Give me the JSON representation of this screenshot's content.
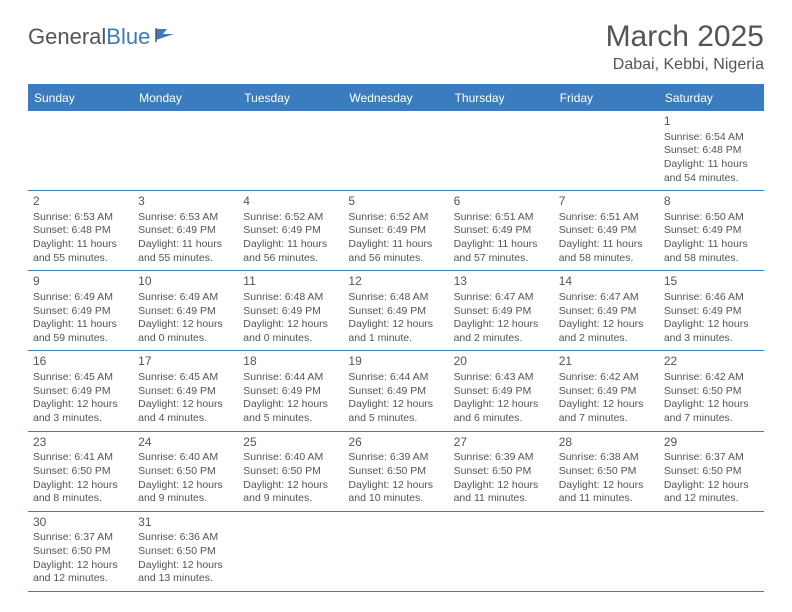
{
  "logo": {
    "text1": "General",
    "text2": "Blue"
  },
  "title": "March 2025",
  "location": "Dabai, Kebbi, Nigeria",
  "colors": {
    "accent": "#3b7bbf",
    "text": "#555555",
    "background": "#ffffff"
  },
  "weekdays": [
    "Sunday",
    "Monday",
    "Tuesday",
    "Wednesday",
    "Thursday",
    "Friday",
    "Saturday"
  ],
  "weeks": [
    [
      null,
      null,
      null,
      null,
      null,
      null,
      {
        "d": "1",
        "sr": "6:54 AM",
        "ss": "6:48 PM",
        "dl": "11 hours and 54 minutes."
      }
    ],
    [
      {
        "d": "2",
        "sr": "6:53 AM",
        "ss": "6:48 PM",
        "dl": "11 hours and 55 minutes."
      },
      {
        "d": "3",
        "sr": "6:53 AM",
        "ss": "6:49 PM",
        "dl": "11 hours and 55 minutes."
      },
      {
        "d": "4",
        "sr": "6:52 AM",
        "ss": "6:49 PM",
        "dl": "11 hours and 56 minutes."
      },
      {
        "d": "5",
        "sr": "6:52 AM",
        "ss": "6:49 PM",
        "dl": "11 hours and 56 minutes."
      },
      {
        "d": "6",
        "sr": "6:51 AM",
        "ss": "6:49 PM",
        "dl": "11 hours and 57 minutes."
      },
      {
        "d": "7",
        "sr": "6:51 AM",
        "ss": "6:49 PM",
        "dl": "11 hours and 58 minutes."
      },
      {
        "d": "8",
        "sr": "6:50 AM",
        "ss": "6:49 PM",
        "dl": "11 hours and 58 minutes."
      }
    ],
    [
      {
        "d": "9",
        "sr": "6:49 AM",
        "ss": "6:49 PM",
        "dl": "11 hours and 59 minutes."
      },
      {
        "d": "10",
        "sr": "6:49 AM",
        "ss": "6:49 PM",
        "dl": "12 hours and 0 minutes."
      },
      {
        "d": "11",
        "sr": "6:48 AM",
        "ss": "6:49 PM",
        "dl": "12 hours and 0 minutes."
      },
      {
        "d": "12",
        "sr": "6:48 AM",
        "ss": "6:49 PM",
        "dl": "12 hours and 1 minute."
      },
      {
        "d": "13",
        "sr": "6:47 AM",
        "ss": "6:49 PM",
        "dl": "12 hours and 2 minutes."
      },
      {
        "d": "14",
        "sr": "6:47 AM",
        "ss": "6:49 PM",
        "dl": "12 hours and 2 minutes."
      },
      {
        "d": "15",
        "sr": "6:46 AM",
        "ss": "6:49 PM",
        "dl": "12 hours and 3 minutes."
      }
    ],
    [
      {
        "d": "16",
        "sr": "6:45 AM",
        "ss": "6:49 PM",
        "dl": "12 hours and 3 minutes."
      },
      {
        "d": "17",
        "sr": "6:45 AM",
        "ss": "6:49 PM",
        "dl": "12 hours and 4 minutes."
      },
      {
        "d": "18",
        "sr": "6:44 AM",
        "ss": "6:49 PM",
        "dl": "12 hours and 5 minutes."
      },
      {
        "d": "19",
        "sr": "6:44 AM",
        "ss": "6:49 PM",
        "dl": "12 hours and 5 minutes."
      },
      {
        "d": "20",
        "sr": "6:43 AM",
        "ss": "6:49 PM",
        "dl": "12 hours and 6 minutes."
      },
      {
        "d": "21",
        "sr": "6:42 AM",
        "ss": "6:49 PM",
        "dl": "12 hours and 7 minutes."
      },
      {
        "d": "22",
        "sr": "6:42 AM",
        "ss": "6:50 PM",
        "dl": "12 hours and 7 minutes."
      }
    ],
    [
      {
        "d": "23",
        "sr": "6:41 AM",
        "ss": "6:50 PM",
        "dl": "12 hours and 8 minutes."
      },
      {
        "d": "24",
        "sr": "6:40 AM",
        "ss": "6:50 PM",
        "dl": "12 hours and 9 minutes."
      },
      {
        "d": "25",
        "sr": "6:40 AM",
        "ss": "6:50 PM",
        "dl": "12 hours and 9 minutes."
      },
      {
        "d": "26",
        "sr": "6:39 AM",
        "ss": "6:50 PM",
        "dl": "12 hours and 10 minutes."
      },
      {
        "d": "27",
        "sr": "6:39 AM",
        "ss": "6:50 PM",
        "dl": "12 hours and 11 minutes."
      },
      {
        "d": "28",
        "sr": "6:38 AM",
        "ss": "6:50 PM",
        "dl": "12 hours and 11 minutes."
      },
      {
        "d": "29",
        "sr": "6:37 AM",
        "ss": "6:50 PM",
        "dl": "12 hours and 12 minutes."
      }
    ],
    [
      {
        "d": "30",
        "sr": "6:37 AM",
        "ss": "6:50 PM",
        "dl": "12 hours and 12 minutes."
      },
      {
        "d": "31",
        "sr": "6:36 AM",
        "ss": "6:50 PM",
        "dl": "12 hours and 13 minutes."
      },
      null,
      null,
      null,
      null,
      null
    ]
  ],
  "labels": {
    "sunrise": "Sunrise:",
    "sunset": "Sunset:",
    "daylight": "Daylight:"
  }
}
